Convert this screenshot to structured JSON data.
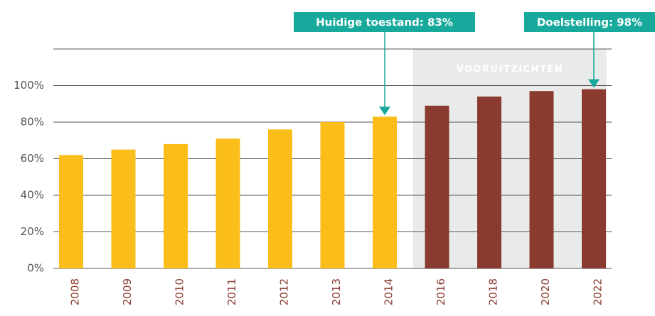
{
  "chart_data": {
    "type": "bar",
    "categories": [
      "2008",
      "2009",
      "2010",
      "2011",
      "2012",
      "2013",
      "2014",
      "2016",
      "2018",
      "2020",
      "2022"
    ],
    "values": [
      62,
      65,
      68,
      71,
      76,
      80,
      83,
      89,
      94,
      97,
      98
    ],
    "colors": [
      "#fbbd19",
      "#fbbd19",
      "#fbbd19",
      "#fbbd19",
      "#fbbd19",
      "#fbbd19",
      "#fbbd19",
      "#8b3a2f",
      "#8b3a2f",
      "#8b3a2f",
      "#8b3a2f"
    ],
    "ylim": [
      0,
      120
    ],
    "yticks": [
      {
        "value": 0,
        "label": "0%"
      },
      {
        "value": 20,
        "label": "20%"
      },
      {
        "value": 40,
        "label": "40%"
      },
      {
        "value": 60,
        "label": "60%"
      },
      {
        "value": 80,
        "label": "80%"
      },
      {
        "value": 100,
        "label": "100%"
      }
    ],
    "grid": true,
    "region": {
      "label": "VOORUITZICHTEN",
      "from": "2016",
      "to": "2022",
      "color": "#e9ebea"
    },
    "annotations": [
      {
        "text": "Huidige toestand: 83%",
        "category": "2014"
      },
      {
        "text": "Doelstelling: 98%",
        "category": "2022"
      }
    ],
    "annotation_color": "#17a99b"
  }
}
